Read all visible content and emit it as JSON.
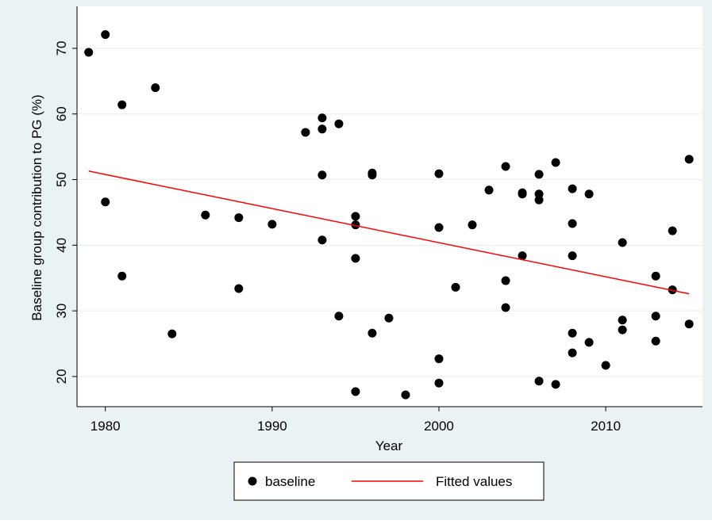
{
  "chart_data": {
    "type": "scatter",
    "xlabel": "Year",
    "ylabel": "Baseline group contribution to PG (%)",
    "xlim": [
      1978.3,
      2015.8
    ],
    "xticks": [
      1980,
      1990,
      2000,
      2010
    ],
    "ylim": [
      15.4,
      76.4
    ],
    "yticks": [
      20,
      30,
      40,
      50,
      60,
      70
    ],
    "grid": true,
    "legend": "bottom",
    "series": [
      {
        "name": "baseline",
        "type": "scatter",
        "color": "#000000",
        "x": [
          1979,
          1980,
          1980,
          1981,
          1981,
          1983,
          1984,
          1986,
          1988,
          1988,
          1990,
          1992,
          1993,
          1993,
          1993,
          1993,
          1994,
          1994,
          1995,
          1995,
          1995,
          1995,
          1996,
          1996,
          1996,
          1997,
          1998,
          2000,
          2000,
          2000,
          2000,
          2001,
          2002,
          2003,
          2004,
          2004,
          2004,
          2005,
          2005,
          2005,
          2006,
          2006,
          2006,
          2006,
          2007,
          2007,
          2008,
          2008,
          2008,
          2008,
          2008,
          2009,
          2009,
          2010,
          2011,
          2011,
          2011,
          2013,
          2013,
          2013,
          2014,
          2014,
          2015,
          2015
        ],
        "values": [
          69.4,
          72.1,
          46.6,
          61.4,
          35.3,
          64.0,
          26.5,
          44.6,
          44.2,
          33.4,
          43.2,
          57.2,
          59.4,
          57.7,
          50.7,
          40.8,
          58.5,
          29.2,
          44.4,
          43.1,
          38.0,
          17.7,
          51.0,
          50.7,
          26.6,
          28.9,
          17.2,
          50.9,
          42.7,
          22.7,
          19.0,
          33.6,
          43.1,
          48.4,
          52.0,
          34.6,
          30.5,
          48.0,
          47.8,
          38.4,
          50.8,
          47.8,
          46.9,
          19.3,
          18.8,
          52.6,
          48.6,
          43.3,
          38.4,
          26.6,
          23.6,
          47.8,
          25.2,
          21.7,
          40.4,
          28.6,
          27.1,
          35.3,
          29.2,
          25.4,
          42.2,
          33.2,
          53.1,
          28.0
        ]
      },
      {
        "name": "Fitted values",
        "type": "line",
        "color": "#ff0000",
        "x": [
          1979,
          2015
        ],
        "values": [
          51.3,
          32.6
        ]
      }
    ]
  }
}
